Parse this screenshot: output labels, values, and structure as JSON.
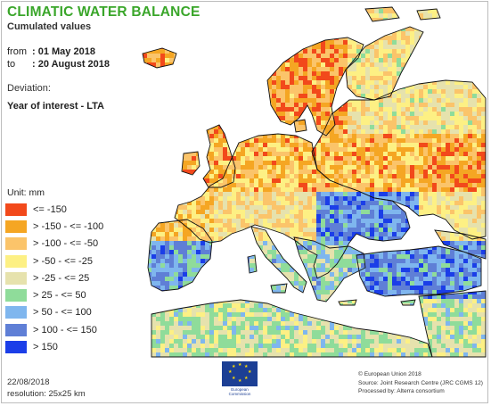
{
  "header": {
    "title": "CLIMATIC WATER BALANCE",
    "subtitle": "Cumulated values"
  },
  "period": {
    "from_label": "from",
    "from_value": ": 01 May 2018",
    "to_label": "to",
    "to_value": ": 20 August 2018"
  },
  "deviation": {
    "label": "Deviation:",
    "value": "Year of interest - LTA"
  },
  "legend": {
    "title": "Unit:  mm",
    "items": [
      {
        "label": "<= -150",
        "color": "#f2491b"
      },
      {
        "label": "> -150 - <= -100",
        "color": "#f5a623"
      },
      {
        "label": "> -100 - <= -50",
        "color": "#fbc46a"
      },
      {
        "label": "> -50 - <= -25",
        "color": "#fdf084"
      },
      {
        "label": "> -25 - <= 25",
        "color": "#e6e2ad"
      },
      {
        "label": "> 25 - <= 50",
        "color": "#8fdc9a"
      },
      {
        "label": "> 50 - <= 100",
        "color": "#7fb6ee"
      },
      {
        "label": "> 100 - <= 150",
        "color": "#5f7fd6"
      },
      {
        "label": "> 150",
        "color": "#1b3ee8"
      }
    ]
  },
  "footer": {
    "date": "22/08/2018",
    "resolution": "resolution: 25x25 km",
    "eu_text": "European Commission",
    "credits": [
      "© European Union 2018",
      "Source: Joint Research Centre (JRC CGMS 12)",
      "Processed by: Alterra consortium"
    ]
  },
  "map": {
    "sea_color": "#ffffff",
    "coast_color": "#000000"
  }
}
